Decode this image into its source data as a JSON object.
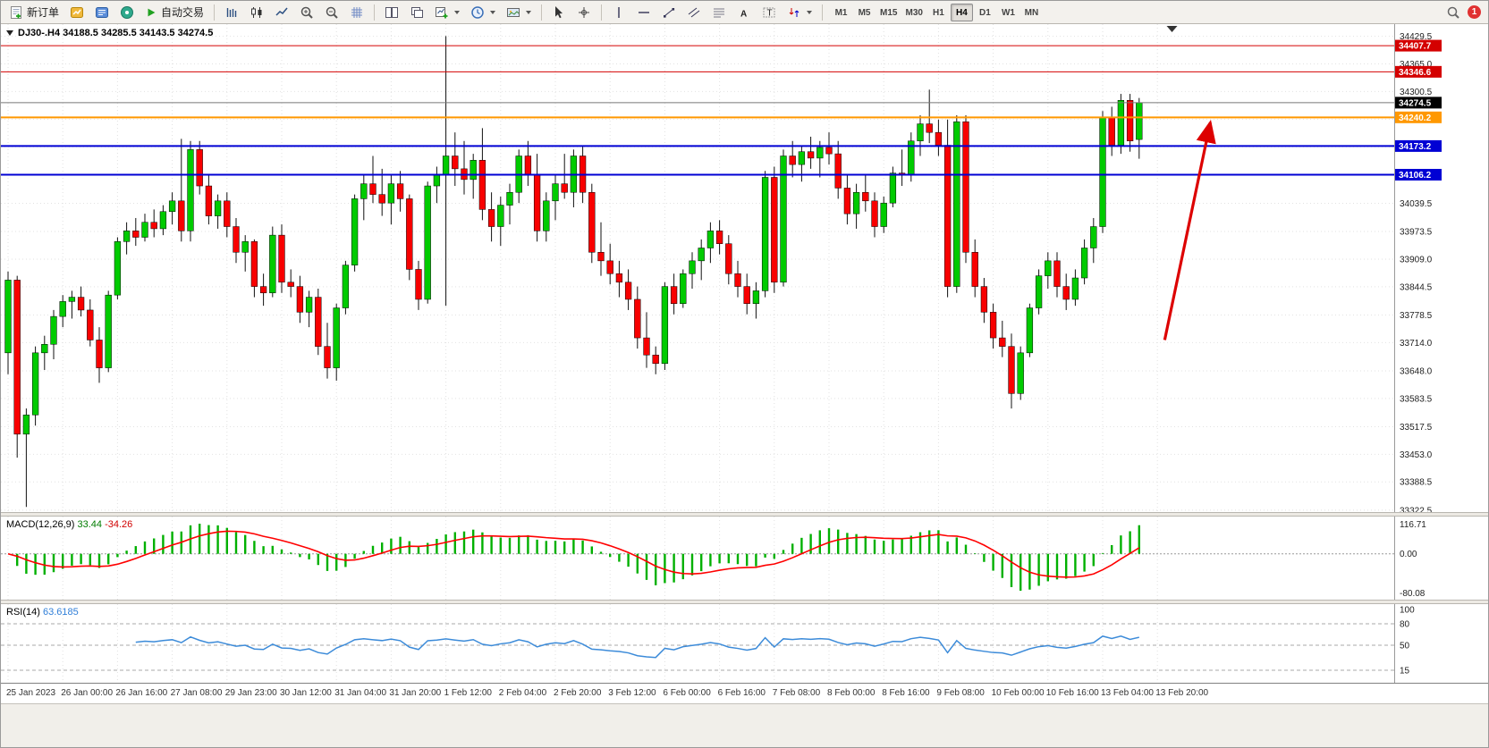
{
  "toolbar": {
    "new_order_label": "新订单",
    "auto_trading_label": "自动交易",
    "timeframes": [
      "M1",
      "M5",
      "M15",
      "M30",
      "H1",
      "H4",
      "D1",
      "W1",
      "MN"
    ],
    "active_timeframe": "H4",
    "notification_count": "1"
  },
  "chart": {
    "header": "DJ30-.H4 34188.5 34285.5 34143.5 34274.5",
    "macd_label": "MACD(12,26,9)",
    "macd_value": "33.44",
    "macd_signal_value": "-34.26",
    "rsi_label": "RSI(14)",
    "rsi_value": "63.6185"
  },
  "chart_data": {
    "type": "candlestick",
    "symbol": "DJ30-",
    "timeframe": "H4",
    "colors": {
      "up": "#00CB00",
      "down": "#F80000",
      "wick": "#111111",
      "macd_hist": "#00B000",
      "macd_signal": "#FF0000",
      "rsi_line": "#3C8BD9",
      "grid": "#E2E2E2",
      "level_red": "#D40000",
      "level_blue": "#0000D4",
      "level_orange": "#FF9800"
    },
    "price_axis": {
      "top_price": 34458,
      "bottom_price": 33318,
      "ticks": [
        34429.5,
        34365.0,
        34300.5,
        34236.0,
        34171.5,
        34107.0,
        34039.5,
        33973.5,
        33909.0,
        33844.5,
        33778.5,
        33714.0,
        33648.0,
        33583.5,
        33517.5,
        33453.0,
        33388.5,
        33322.5
      ]
    },
    "time_labels": [
      [
        0,
        "25 Jan 2023"
      ],
      [
        6,
        "26 Jan 00:00"
      ],
      [
        12,
        "26 Jan 16:00"
      ],
      [
        18,
        "27 Jan 08:00"
      ],
      [
        24,
        "29 Jan 23:00"
      ],
      [
        30,
        "30 Jan 12:00"
      ],
      [
        36,
        "31 Jan 04:00"
      ],
      [
        42,
        "31 Jan 20:00"
      ],
      [
        48,
        "1 Feb 12:00"
      ],
      [
        54,
        "2 Feb 04:00"
      ],
      [
        60,
        "2 Feb 20:00"
      ],
      [
        66,
        "3 Feb 12:00"
      ],
      [
        72,
        "6 Feb 00:00"
      ],
      [
        78,
        "6 Feb 16:00"
      ],
      [
        84,
        "7 Feb 08:00"
      ],
      [
        90,
        "8 Feb 00:00"
      ],
      [
        96,
        "8 Feb 16:00"
      ],
      [
        102,
        "9 Feb 08:00"
      ],
      [
        108,
        "10 Feb 00:00"
      ],
      [
        114,
        "10 Feb 16:00"
      ],
      [
        120,
        "13 Feb 04:00"
      ],
      [
        126,
        "13 Feb 20:00"
      ]
    ],
    "ohlc": [
      [
        33690,
        33880,
        33640,
        33860
      ],
      [
        33860,
        33870,
        33445,
        33500
      ],
      [
        33500,
        33560,
        33330,
        33545
      ],
      [
        33545,
        33705,
        33520,
        33690
      ],
      [
        33690,
        33730,
        33650,
        33710
      ],
      [
        33710,
        33790,
        33675,
        33775
      ],
      [
        33775,
        33825,
        33750,
        33810
      ],
      [
        33810,
        33835,
        33770,
        33820
      ],
      [
        33820,
        33845,
        33775,
        33790
      ],
      [
        33790,
        33815,
        33705,
        33720
      ],
      [
        33720,
        33750,
        33620,
        33655
      ],
      [
        33655,
        33835,
        33645,
        33825
      ],
      [
        33825,
        33960,
        33815,
        33950
      ],
      [
        33950,
        33995,
        33920,
        33975
      ],
      [
        33975,
        34005,
        33940,
        33960
      ],
      [
        33960,
        34015,
        33950,
        33995
      ],
      [
        33995,
        34025,
        33960,
        33980
      ],
      [
        33980,
        34035,
        33965,
        34020
      ],
      [
        34020,
        34065,
        33990,
        34045
      ],
      [
        34045,
        34190,
        33950,
        33975
      ],
      [
        33975,
        34185,
        33950,
        34165
      ],
      [
        34165,
        34185,
        34060,
        34080
      ],
      [
        34080,
        34105,
        33990,
        34010
      ],
      [
        34010,
        34060,
        33980,
        34045
      ],
      [
        34045,
        34065,
        33960,
        33985
      ],
      [
        33985,
        34005,
        33900,
        33925
      ],
      [
        33925,
        33965,
        33880,
        33950
      ],
      [
        33950,
        33955,
        33820,
        33845
      ],
      [
        33845,
        33875,
        33800,
        33830
      ],
      [
        33830,
        33985,
        33820,
        33965
      ],
      [
        33965,
        33990,
        33830,
        33855
      ],
      [
        33855,
        33885,
        33820,
        33845
      ],
      [
        33845,
        33870,
        33760,
        33785
      ],
      [
        33785,
        33835,
        33750,
        33820
      ],
      [
        33820,
        33840,
        33685,
        33705
      ],
      [
        33705,
        33760,
        33630,
        33655
      ],
      [
        33655,
        33805,
        33625,
        33795
      ],
      [
        33795,
        33905,
        33780,
        33895
      ],
      [
        33895,
        34060,
        33880,
        34050
      ],
      [
        34050,
        34105,
        34000,
        34085
      ],
      [
        34085,
        34150,
        34040,
        34060
      ],
      [
        34060,
        34120,
        34010,
        34040
      ],
      [
        34040,
        34105,
        33990,
        34085
      ],
      [
        34085,
        34115,
        34020,
        34050
      ],
      [
        34050,
        34060,
        33860,
        33885
      ],
      [
        33885,
        33905,
        33790,
        33815
      ],
      [
        33815,
        34090,
        33805,
        34080
      ],
      [
        34080,
        34125,
        34040,
        34105
      ],
      [
        34105,
        34430,
        33800,
        34150
      ],
      [
        34150,
        34205,
        34080,
        34120
      ],
      [
        34120,
        34185,
        34060,
        34095
      ],
      [
        34095,
        34155,
        34050,
        34140
      ],
      [
        34140,
        34215,
        34000,
        34025
      ],
      [
        34025,
        34065,
        33950,
        33985
      ],
      [
        33985,
        34055,
        33940,
        34035
      ],
      [
        34035,
        34085,
        33990,
        34065
      ],
      [
        34065,
        34165,
        34040,
        34150
      ],
      [
        34150,
        34185,
        34080,
        34105
      ],
      [
        34105,
        34155,
        33950,
        33975
      ],
      [
        33975,
        34065,
        33950,
        34045
      ],
      [
        34045,
        34105,
        34000,
        34085
      ],
      [
        34085,
        34155,
        34050,
        34065
      ],
      [
        34065,
        34165,
        34030,
        34150
      ],
      [
        34150,
        34175,
        34040,
        34065
      ],
      [
        34065,
        34085,
        33900,
        33925
      ],
      [
        33925,
        33995,
        33870,
        33905
      ],
      [
        33905,
        33945,
        33850,
        33875
      ],
      [
        33875,
        33905,
        33820,
        33855
      ],
      [
        33855,
        33885,
        33790,
        33815
      ],
      [
        33815,
        33845,
        33700,
        33725
      ],
      [
        33725,
        33785,
        33655,
        33685
      ],
      [
        33685,
        33705,
        33640,
        33665
      ],
      [
        33665,
        33855,
        33650,
        33845
      ],
      [
        33845,
        33875,
        33780,
        33805
      ],
      [
        33805,
        33885,
        33795,
        33875
      ],
      [
        33875,
        33925,
        33840,
        33905
      ],
      [
        33905,
        33955,
        33860,
        33935
      ],
      [
        33935,
        33995,
        33900,
        33975
      ],
      [
        33975,
        34000,
        33920,
        33945
      ],
      [
        33945,
        33965,
        33850,
        33875
      ],
      [
        33875,
        33905,
        33820,
        33845
      ],
      [
        33845,
        33875,
        33780,
        33805
      ],
      [
        33805,
        33855,
        33770,
        33835
      ],
      [
        33835,
        34115,
        33820,
        34100
      ],
      [
        34100,
        34125,
        33830,
        33855
      ],
      [
        33855,
        34165,
        33845,
        34150
      ],
      [
        34150,
        34185,
        34100,
        34130
      ],
      [
        34130,
        34175,
        34090,
        34160
      ],
      [
        34160,
        34195,
        34120,
        34145
      ],
      [
        34145,
        34185,
        34100,
        34170
      ],
      [
        34170,
        34205,
        34130,
        34155
      ],
      [
        34155,
        34185,
        34050,
        34075
      ],
      [
        34075,
        34105,
        33990,
        34015
      ],
      [
        34015,
        34085,
        33980,
        34065
      ],
      [
        34065,
        34105,
        34020,
        34045
      ],
      [
        34045,
        34065,
        33960,
        33985
      ],
      [
        33985,
        34055,
        33970,
        34040
      ],
      [
        34040,
        34125,
        34030,
        34110
      ],
      [
        34110,
        34165,
        34080,
        34105
      ],
      [
        34105,
        34205,
        34090,
        34185
      ],
      [
        34185,
        34245,
        34150,
        34225
      ],
      [
        34225,
        34305,
        34180,
        34205
      ],
      [
        34205,
        34235,
        34150,
        34175
      ],
      [
        34175,
        34235,
        33820,
        33845
      ],
      [
        33845,
        34245,
        33830,
        34230
      ],
      [
        34230,
        34245,
        33900,
        33925
      ],
      [
        33925,
        33955,
        33820,
        33845
      ],
      [
        33845,
        33865,
        33760,
        33785
      ],
      [
        33785,
        33805,
        33700,
        33725
      ],
      [
        33725,
        33765,
        33680,
        33705
      ],
      [
        33705,
        33735,
        33560,
        33595
      ],
      [
        33595,
        33705,
        33580,
        33690
      ],
      [
        33690,
        33805,
        33680,
        33795
      ],
      [
        33795,
        33885,
        33780,
        33870
      ],
      [
        33870,
        33925,
        33840,
        33905
      ],
      [
        33905,
        33925,
        33820,
        33845
      ],
      [
        33845,
        33875,
        33790,
        33815
      ],
      [
        33815,
        33885,
        33800,
        33865
      ],
      [
        33865,
        33955,
        33850,
        33935
      ],
      [
        33935,
        34005,
        33900,
        33985
      ],
      [
        33985,
        34255,
        33970,
        34240
      ],
      [
        34240,
        34265,
        34150,
        34175
      ],
      [
        34175,
        34295,
        34155,
        34280
      ],
      [
        34280,
        34295,
        34160,
        34185
      ],
      [
        34188.5,
        34285.5,
        34143.5,
        34274.5
      ]
    ],
    "levels": [
      {
        "price": 34407.7,
        "label": "34407.7",
        "color": "#D40000",
        "width": 1
      },
      {
        "price": 34346.6,
        "label": "34346.6",
        "color": "#D40000",
        "width": 1
      },
      {
        "price": 34240.2,
        "label": "34240.2",
        "color": "#FF9800",
        "width": 2
      },
      {
        "price": 34173.2,
        "label": "34173.2",
        "color": "#0000D4",
        "width": 2
      },
      {
        "price": 34106.2,
        "label": "34106.2",
        "color": "#0000D4",
        "width": 2
      }
    ],
    "current_price": {
      "price": 34274.5,
      "label": "34274.5",
      "badge_color": "#000000",
      "line_color": "#777777"
    },
    "arrow": {
      "from_bar": 126.8,
      "from_price": 33720,
      "to_bar": 131.8,
      "to_price": 34228,
      "color": "#DD0000"
    },
    "shift_marker_bar": 127.6,
    "indicators": {
      "macd": {
        "fast": 12,
        "slow": 26,
        "signal": 9,
        "axis_top_label": "116.71",
        "axis_zero_label": "0.00",
        "axis_bottom_label": "-80.08"
      },
      "rsi": {
        "period": 14,
        "levels": [
          80,
          50,
          15
        ],
        "axis_labels": [
          "100",
          "80",
          "50",
          "15"
        ]
      }
    }
  }
}
